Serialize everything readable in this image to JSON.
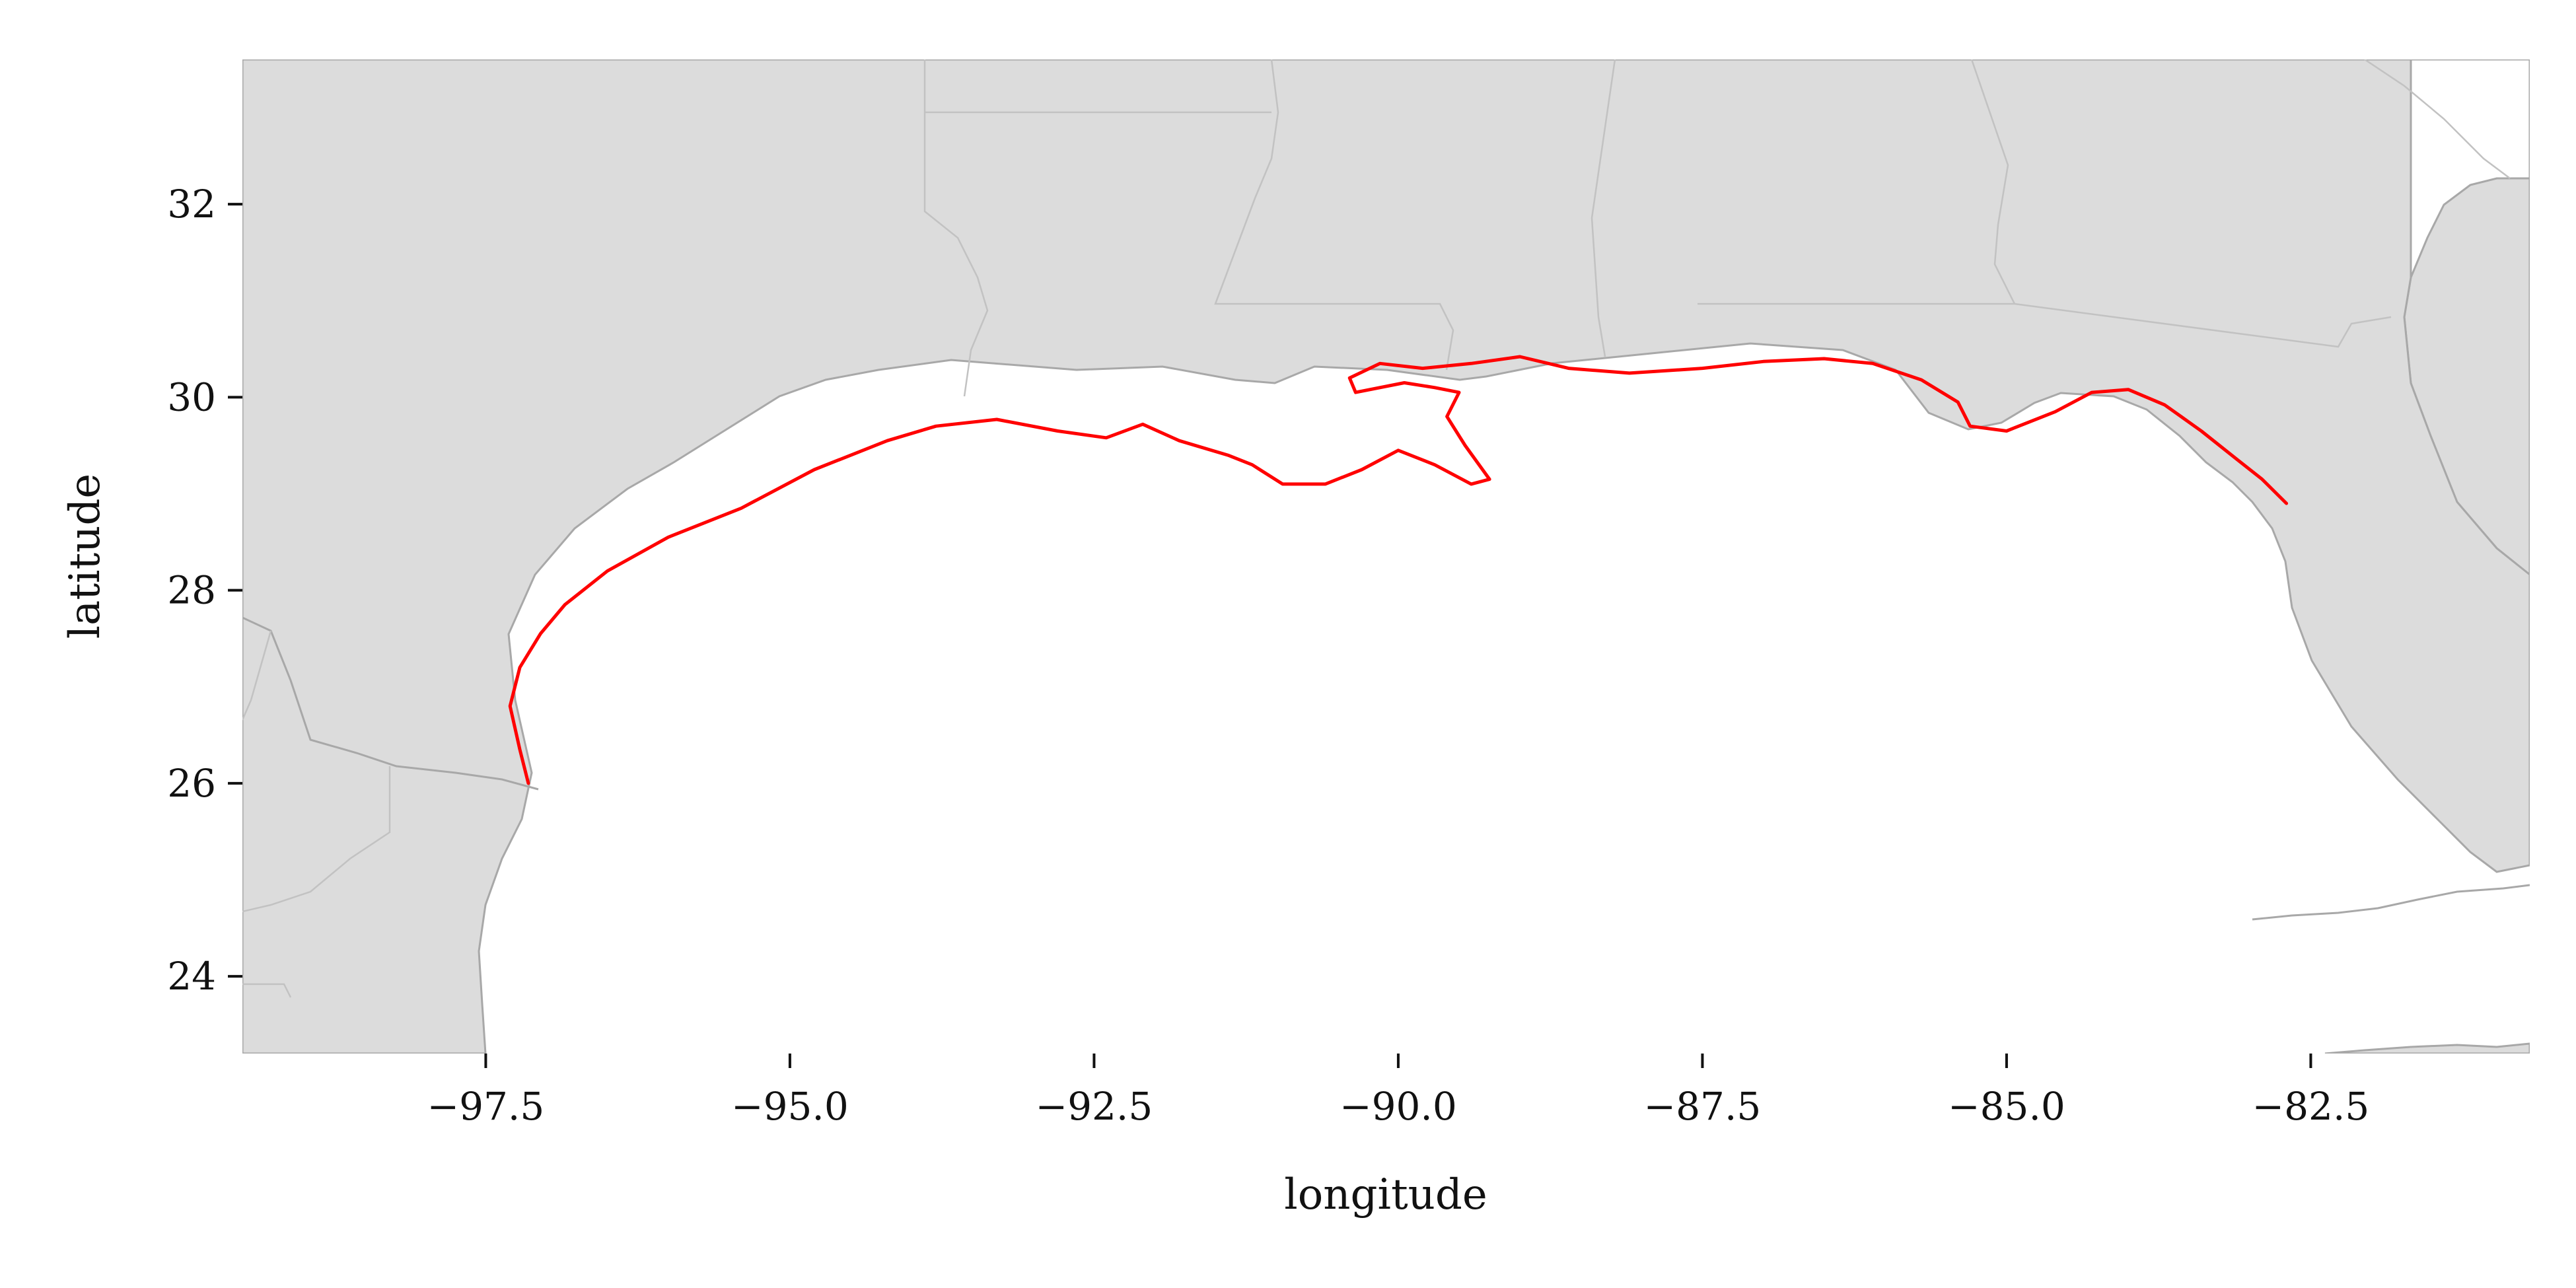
{
  "chart_data": {
    "type": "map",
    "xlabel": "longitude",
    "ylabel": "latitude",
    "xlim": [
      -99.5,
      -80.7
    ],
    "ylim": [
      23.2,
      33.5
    ],
    "xticks": [
      -97.5,
      -95.0,
      -92.5,
      -90.0,
      -87.5,
      -85.0,
      -82.5
    ],
    "xtick_labels": [
      "−97.5",
      "−95.0",
      "−92.5",
      "−90.0",
      "−87.5",
      "−85.0",
      "−82.5"
    ],
    "yticks": [
      24,
      26,
      28,
      30,
      32
    ],
    "ytick_labels": [
      "24",
      "26",
      "28",
      "30",
      "32"
    ],
    "grid": false,
    "land_color": "#dcdcdc",
    "water_color": "#ffffff",
    "boundary_color": "#a8a8a8",
    "series": [
      {
        "color": "#ff0000",
        "coords": [
          [
            -97.15,
            26.0
          ],
          [
            -97.22,
            26.35
          ],
          [
            -97.3,
            26.8
          ],
          [
            -97.22,
            27.2
          ],
          [
            -97.05,
            27.55
          ],
          [
            -96.85,
            27.85
          ],
          [
            -96.5,
            28.2
          ],
          [
            -96.0,
            28.55
          ],
          [
            -95.4,
            28.85
          ],
          [
            -94.8,
            29.25
          ],
          [
            -94.2,
            29.55
          ],
          [
            -93.8,
            29.7
          ],
          [
            -93.3,
            29.77
          ],
          [
            -92.8,
            29.65
          ],
          [
            -92.4,
            29.58
          ],
          [
            -92.1,
            29.72
          ],
          [
            -91.8,
            29.55
          ],
          [
            -91.4,
            29.4
          ],
          [
            -91.2,
            29.3
          ],
          [
            -90.95,
            29.1
          ],
          [
            -90.6,
            29.1
          ],
          [
            -90.3,
            29.25
          ],
          [
            -90.0,
            29.45
          ],
          [
            -89.7,
            29.3
          ],
          [
            -89.4,
            29.1
          ],
          [
            -89.25,
            29.15
          ],
          [
            -89.45,
            29.5
          ],
          [
            -89.6,
            29.8
          ],
          [
            -89.5,
            30.05
          ],
          [
            -89.7,
            30.1
          ],
          [
            -89.95,
            30.15
          ],
          [
            -90.35,
            30.05
          ],
          [
            -90.4,
            30.2
          ],
          [
            -90.15,
            30.35
          ],
          [
            -89.8,
            30.3
          ],
          [
            -89.4,
            30.35
          ],
          [
            -89.0,
            30.42
          ],
          [
            -88.6,
            30.3
          ],
          [
            -88.1,
            30.25
          ],
          [
            -87.5,
            30.3
          ],
          [
            -87.0,
            30.37
          ],
          [
            -86.5,
            30.4
          ],
          [
            -86.1,
            30.35
          ],
          [
            -85.7,
            30.18
          ],
          [
            -85.4,
            29.95
          ],
          [
            -85.3,
            29.7
          ],
          [
            -85.0,
            29.65
          ],
          [
            -84.6,
            29.85
          ],
          [
            -84.3,
            30.05
          ],
          [
            -84.0,
            30.08
          ],
          [
            -83.7,
            29.92
          ],
          [
            -83.4,
            29.65
          ],
          [
            -83.1,
            29.35
          ],
          [
            -82.9,
            29.15
          ],
          [
            -82.7,
            28.9
          ]
        ]
      }
    ]
  }
}
